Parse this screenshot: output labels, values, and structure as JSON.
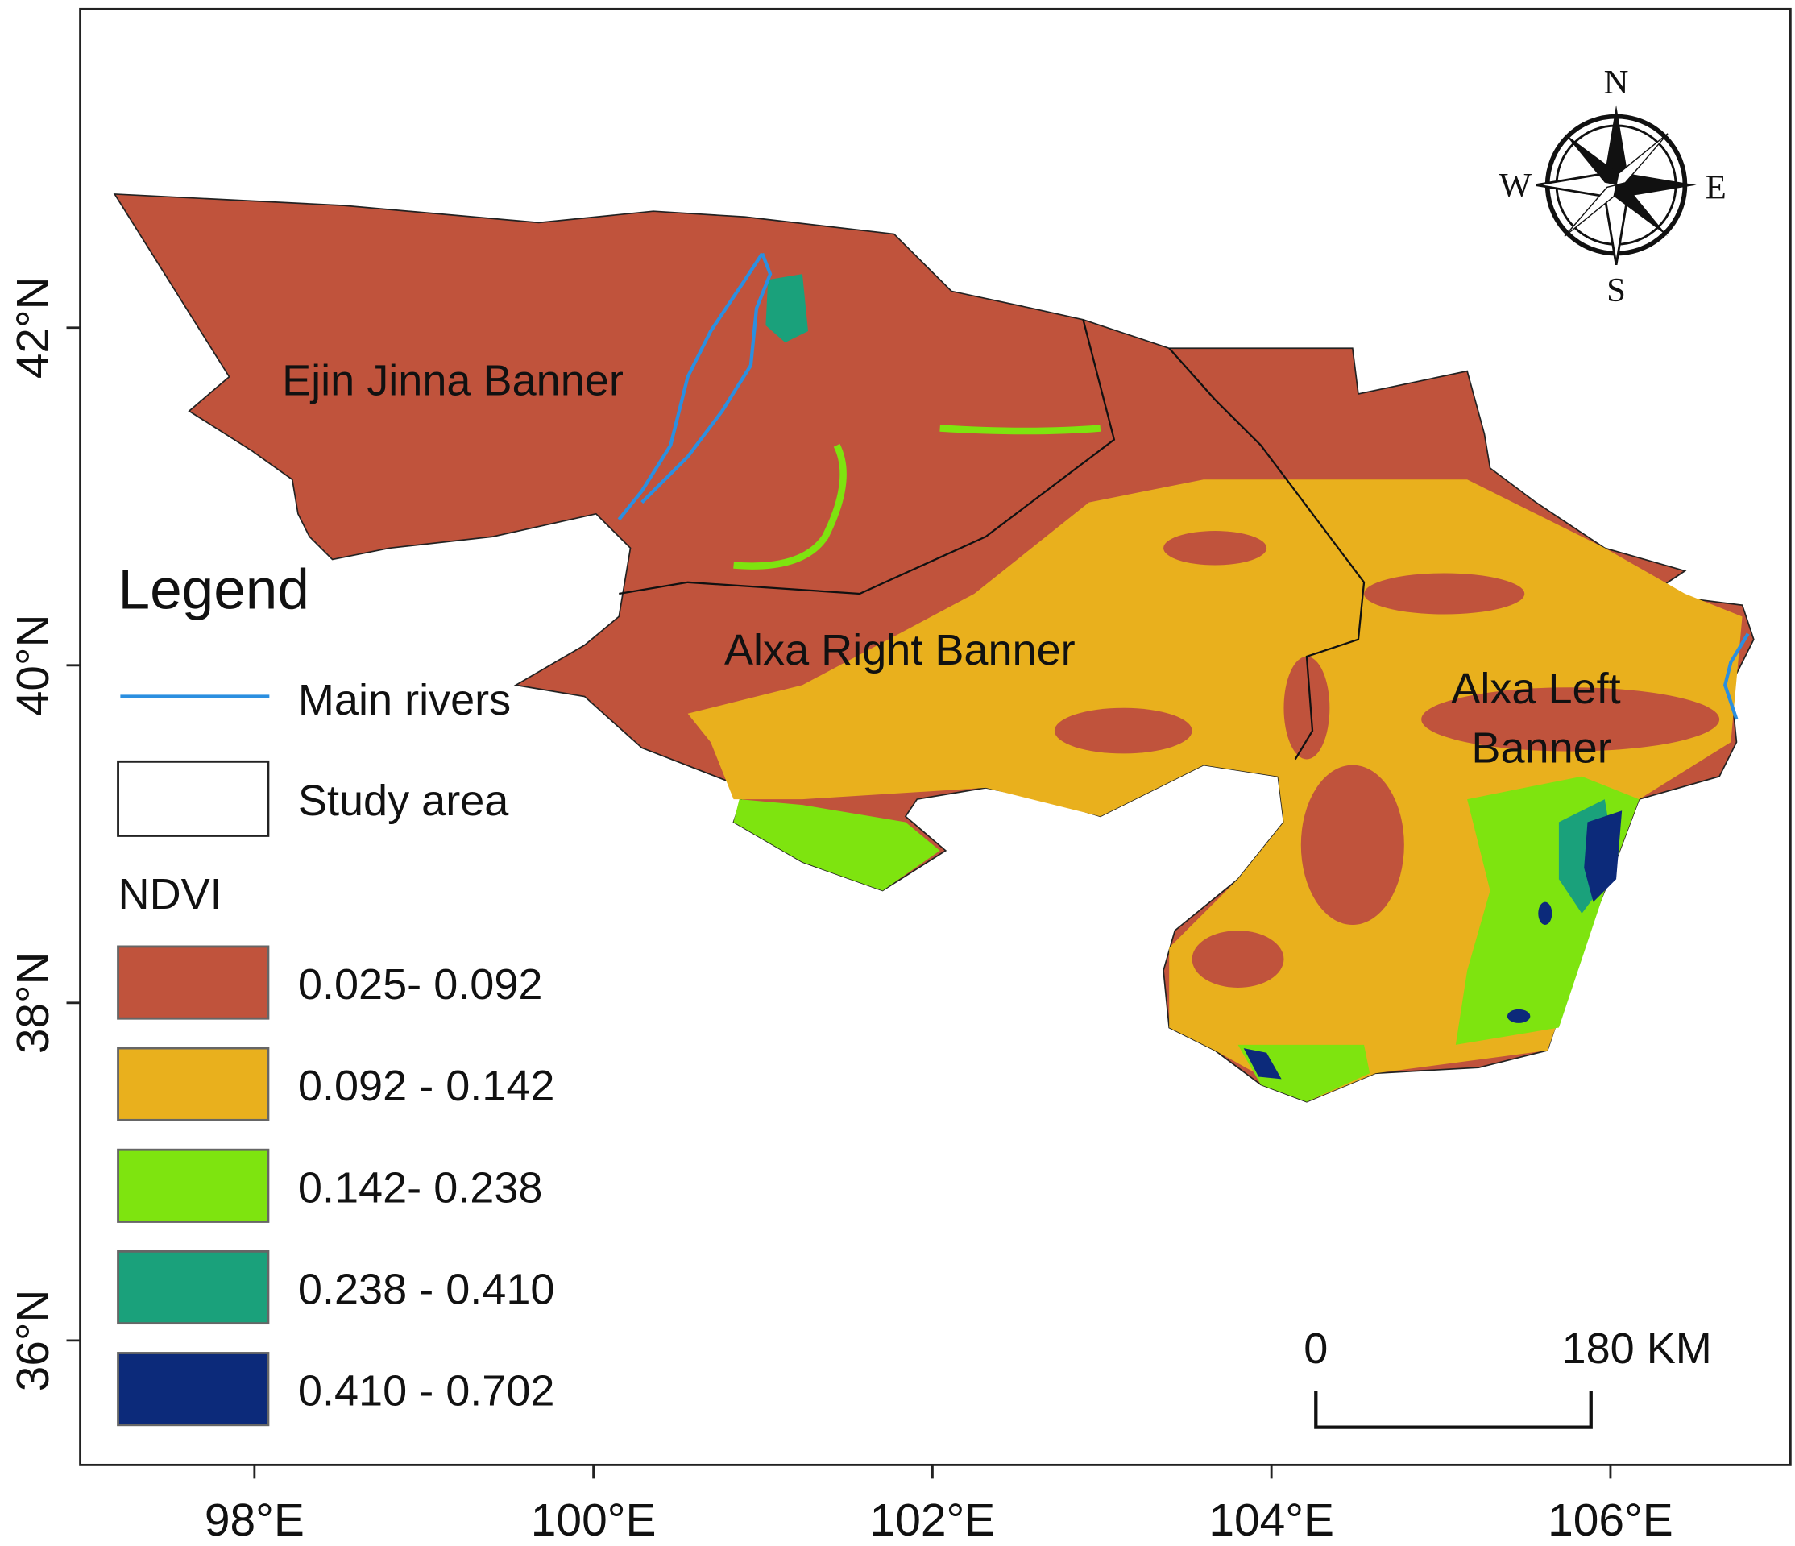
{
  "map": {
    "xticks": [
      {
        "value": 98,
        "label": "98°E"
      },
      {
        "value": 100,
        "label": "100°E"
      },
      {
        "value": 102,
        "label": "102°E"
      },
      {
        "value": 104,
        "label": "104°E"
      },
      {
        "value": 106,
        "label": "106°E"
      }
    ],
    "yticks": [
      {
        "value": 42,
        "label": "42°N"
      },
      {
        "value": 40,
        "label": "40°N"
      },
      {
        "value": 38,
        "label": "38°N"
      },
      {
        "value": 36,
        "label": "36°N"
      }
    ],
    "regions": [
      [
        "Ejin Jinna Banner"
      ],
      [
        "Alxa Right Banner"
      ],
      [
        "Alxa Left",
        "Banner"
      ]
    ],
    "compass": {
      "north": "N",
      "south": "S",
      "west": "W",
      "east": "E"
    },
    "legend": {
      "title": "Legend",
      "rivers": "Main rivers",
      "river_color": "#2b8fe0",
      "study_area": "Study area",
      "ndvi_title": "NDVI",
      "classes": [
        {
          "label": "0.025- 0.092",
          "color": "#c0533c"
        },
        {
          "label": "0.092 - 0.142",
          "color": "#e9b01d"
        },
        {
          "label": "0.142- 0.238",
          "color": "#7ee40f"
        },
        {
          "label": "0.238 - 0.410",
          "color": "#1aa17b"
        },
        {
          "label": "0.410 - 0.702",
          "color": "#0c2a7a"
        }
      ]
    },
    "scale_bar": {
      "start": "0",
      "end": "180 KM"
    }
  }
}
